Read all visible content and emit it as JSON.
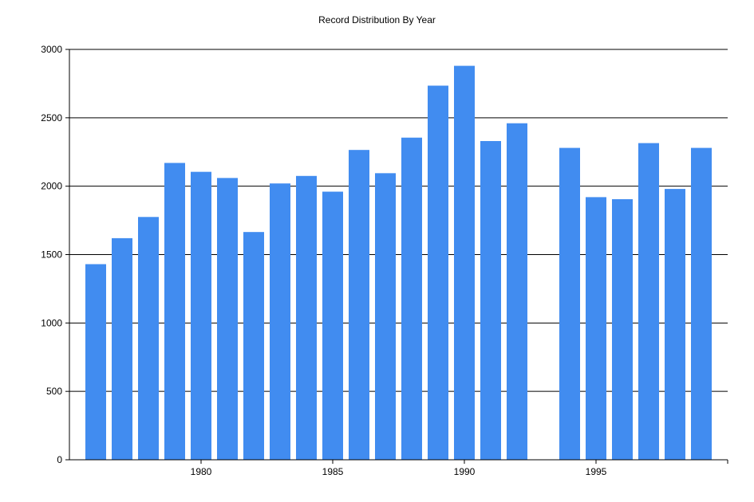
{
  "chart_data": {
    "type": "bar",
    "title": "Record Distribution By Year",
    "xlabel": "",
    "ylabel": "",
    "x": [
      1976,
      1977,
      1978,
      1979,
      1980,
      1981,
      1982,
      1983,
      1984,
      1985,
      1986,
      1987,
      1988,
      1989,
      1990,
      1991,
      1992,
      1994,
      1995,
      1996,
      1997,
      1998,
      1999
    ],
    "values": [
      1430,
      1620,
      1775,
      2170,
      2105,
      2060,
      1665,
      2020,
      2075,
      1960,
      2265,
      2095,
      2355,
      2735,
      2880,
      2330,
      2460,
      2280,
      1920,
      1905,
      2315,
      1980,
      2280
    ],
    "xlim": [
      1975,
      2000
    ],
    "ylim": [
      0,
      3000
    ],
    "xticks": [
      "1980",
      "1985",
      "1990",
      "1995"
    ],
    "yticks": [
      "0",
      "500",
      "1000",
      "1500",
      "2000",
      "2500",
      "3000"
    ],
    "grid": "horizontal",
    "legend": "none",
    "bar_color": "#418CF0"
  }
}
